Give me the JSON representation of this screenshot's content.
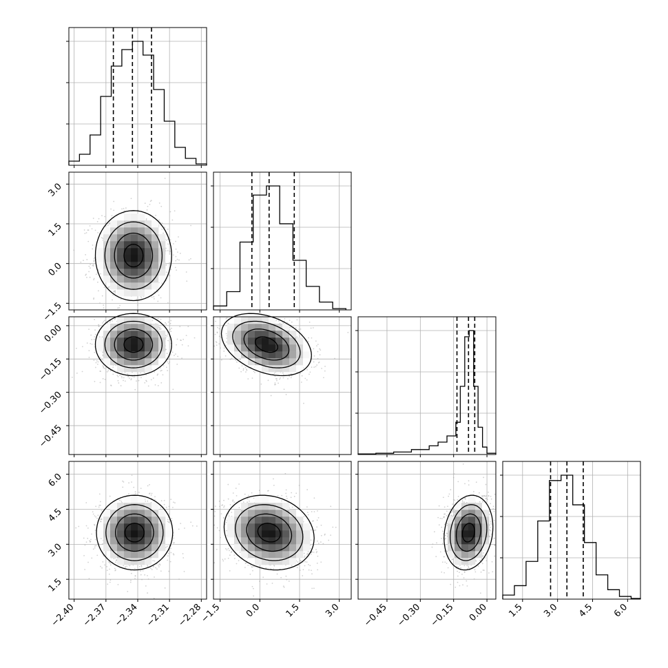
{
  "chart_data": {
    "type": "corner",
    "parameters": [
      {
        "range": [
          -2.405,
          -2.275
        ],
        "ticks": [
          -2.4,
          -2.37,
          -2.34,
          -2.31,
          -2.28
        ],
        "tick_labels": [
          "−2.40",
          "−2.37",
          "−2.34",
          "−2.31",
          "−2.28"
        ]
      },
      {
        "range": [
          -1.75,
          3.45
        ],
        "ticks": [
          -1.5,
          0.0,
          1.5,
          3.0
        ],
        "tick_labels": [
          "−1.5",
          "0.0",
          "1.5",
          "3.0"
        ]
      },
      {
        "range": [
          -0.58,
          0.04
        ],
        "ticks": [
          -0.45,
          -0.3,
          -0.15,
          0.0
        ],
        "tick_labels": [
          "−0.45",
          "−0.30",
          "−0.15",
          "0.00"
        ]
      },
      {
        "range": [
          0.65,
          6.55
        ],
        "ticks": [
          1.5,
          3.0,
          4.5,
          6.0
        ],
        "tick_labels": [
          "1.5",
          "3.0",
          "4.5",
          "6.0"
        ]
      }
    ],
    "histograms": [
      {
        "quantiles": [
          -2.363,
          -2.345,
          -2.327
        ],
        "bin_edges": [
          -2.405,
          -2.395,
          -2.385,
          -2.375,
          -2.365,
          -2.355,
          -2.345,
          -2.335,
          -2.325,
          -2.315,
          -2.305,
          -2.295,
          -2.285,
          -2.275
        ],
        "counts": [
          3,
          8,
          22,
          50,
          72,
          84,
          90,
          80,
          55,
          32,
          13,
          5,
          1
        ]
      },
      {
        "quantiles": [
          -0.3,
          0.35,
          1.3
        ],
        "bin_edges": [
          -1.75,
          -1.25,
          -0.75,
          -0.25,
          0.25,
          0.75,
          1.25,
          1.75,
          2.25,
          2.75,
          3.25
        ],
        "counts": [
          3,
          14,
          52,
          88,
          95,
          66,
          38,
          18,
          6,
          1
        ]
      },
      {
        "quantiles": [
          -0.135,
          -0.083,
          -0.055
        ],
        "bin_edges": [
          -0.58,
          -0.5,
          -0.42,
          -0.34,
          -0.26,
          -0.22,
          -0.18,
          -0.14,
          -0.12,
          -0.1,
          -0.08,
          -0.06,
          -0.04,
          -0.02,
          0.0,
          0.04
        ],
        "counts": [
          0.5,
          1,
          2,
          4,
          7,
          10,
          15,
          26,
          55,
          95,
          100,
          55,
          22,
          6,
          1
        ]
      },
      {
        "quantiles": [
          2.7,
          3.4,
          4.1
        ],
        "bin_edges": [
          0.65,
          1.15,
          1.65,
          2.15,
          2.65,
          3.15,
          3.65,
          4.15,
          4.65,
          5.15,
          5.65,
          6.15,
          6.55
        ],
        "counts": [
          3,
          10,
          28,
          58,
          88,
          92,
          70,
          42,
          18,
          7,
          2,
          0.5
        ]
      }
    ],
    "scatter_panels": [
      {
        "x_param": 0,
        "y_param": 1,
        "center": [
          -2.344,
          0.3
        ],
        "sd": [
          0.018,
          0.85
        ],
        "rho": 0.0
      },
      {
        "x_param": 0,
        "y_param": 2,
        "center": [
          -2.344,
          -0.085
        ],
        "sd": [
          0.018,
          0.07
        ],
        "rho": 0.0
      },
      {
        "x_param": 1,
        "y_param": 2,
        "center": [
          0.25,
          -0.085
        ],
        "sd": [
          0.85,
          0.07
        ],
        "rho": -0.35
      },
      {
        "x_param": 0,
        "y_param": 3,
        "center": [
          -2.343,
          3.5
        ],
        "sd": [
          0.018,
          0.8
        ],
        "rho": 0.0
      },
      {
        "x_param": 1,
        "y_param": 3,
        "center": [
          0.35,
          3.5
        ],
        "sd": [
          0.85,
          0.8
        ],
        "rho": -0.15
      },
      {
        "x_param": 2,
        "y_param": 3,
        "center": [
          -0.083,
          3.5
        ],
        "sd": [
          0.055,
          0.8
        ],
        "rho": 0.15
      }
    ],
    "grid": true,
    "line_color": "#000000",
    "point_color": "#a9a9a9"
  }
}
